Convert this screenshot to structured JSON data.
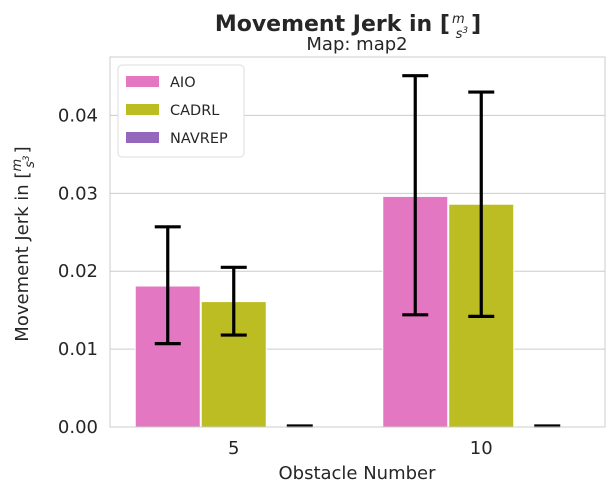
{
  "chart_data": {
    "type": "bar",
    "title": "Movement Jerk in [m/s³]",
    "title_prefix": "Movement Jerk in [",
    "title_suffix": "]",
    "unit_num": "m",
    "unit_den": "s",
    "unit_exp": "3",
    "subtitle": "Map: map2",
    "xlabel": "Obstacle Number",
    "ylabel": "Movement Jerk in [m/s³]",
    "categories": [
      "5",
      "10"
    ],
    "ylim": [
      0,
      0.0475
    ],
    "yticks": [
      0.0,
      0.01,
      0.02,
      0.03,
      0.04
    ],
    "ytick_labels": [
      "0.00",
      "0.01",
      "0.02",
      "0.03",
      "0.04"
    ],
    "grid": "horizontal",
    "legend_position": "top-left",
    "series": [
      {
        "name": "AIO",
        "color": "#e377c2",
        "values": [
          0.0181,
          0.0296
        ],
        "err_low": [
          0.0107,
          0.0144
        ],
        "err_high": [
          0.0257,
          0.0451
        ]
      },
      {
        "name": "CADRL",
        "color": "#bcbd22",
        "values": [
          0.0161,
          0.0286
        ],
        "err_low": [
          0.0118,
          0.0142
        ],
        "err_high": [
          0.0205,
          0.043
        ]
      },
      {
        "name": "NAVREP",
        "color": "#9467bd",
        "values": [
          0.0,
          0.0
        ],
        "err_low": [
          0.0,
          0.0
        ],
        "err_high": [
          0.0,
          0.0
        ]
      }
    ]
  }
}
